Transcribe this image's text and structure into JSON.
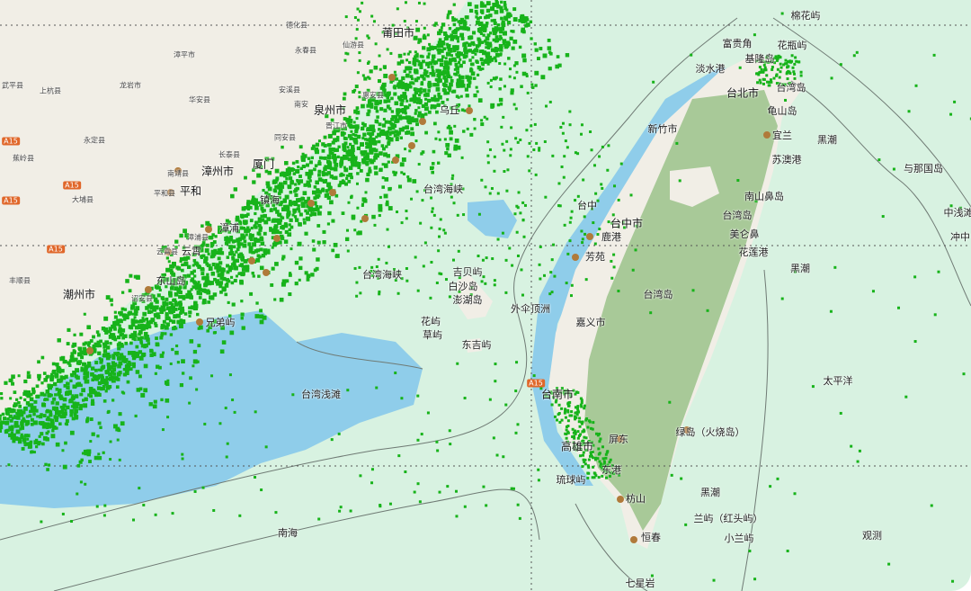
{
  "map": {
    "colors": {
      "sea": "#d8f2e1",
      "land": "#f1eee6",
      "taiwan_forest": "#a8c998",
      "shallow": "#8fcdea",
      "ships": "#17b31a",
      "depth_line": "#6f7a74",
      "grid": "#555555",
      "port": "#b07a3a"
    },
    "ship_density": "high along Fujian coast and Taiwan Strait",
    "labels": [
      "莆田市",
      "泉州市",
      "厦门",
      "漳州市",
      "平和",
      "镇海",
      "漳浦",
      "云霄",
      "东山岛",
      "潮州市",
      "兄弟屿",
      "台湾海峡",
      "台湾海峡",
      "台湾浅滩",
      "吉贝屿",
      "白沙岛",
      "澎湖岛",
      "花屿",
      "草屿",
      "东吉屿",
      "外伞顶洲",
      "南海",
      "棉花屿",
      "富贵角",
      "花瓶屿",
      "基隆岛",
      "淡水港",
      "台北市",
      "台湾岛",
      "龟山岛",
      "新竹市",
      "宜兰",
      "黑潮",
      "苏澳港",
      "与那国岛",
      "台中",
      "南山鼻岛",
      "台湾岛",
      "中浅滩",
      "台中市",
      "鹿港",
      "美仑鼻",
      "冲中",
      "芳苑",
      "花莲港",
      "黑潮",
      "台湾岛",
      "嘉义市",
      "太平洋",
      "台南市",
      "屏东",
      "绿岛（火烧岛）",
      "高雄市",
      "东港",
      "琉球屿",
      "黑潮",
      "枋山",
      "兰屿（红头屿）",
      "恒春",
      "小兰屿",
      "观测",
      "七星岩",
      "乌丘"
    ],
    "county_labels": [
      "德化县",
      "永春县",
      "仙游县",
      "漳平市",
      "龙岩市",
      "华安县",
      "安溪县",
      "惠安县",
      "南安",
      "晋江市",
      "同安县",
      "长泰县",
      "上杭县",
      "永定县",
      "武平县",
      "蕉岭县",
      "大埔县",
      "丰顺县",
      "南靖县",
      "平和县",
      "漳浦县",
      "云霄县",
      "诏安县"
    ],
    "road_shields": [
      "A15",
      "A15",
      "A15",
      "A15",
      "A15"
    ]
  }
}
